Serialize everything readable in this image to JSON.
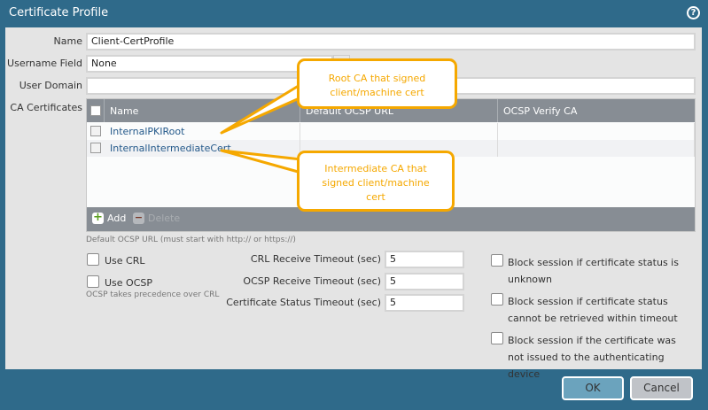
{
  "dialog": {
    "title": "Certificate Profile",
    "help_icon": "question-circle-icon"
  },
  "form": {
    "name_label": "Name",
    "name_value": "Client-CertProfile",
    "username_label": "Username Field",
    "username_value": "None",
    "domain_label": "User Domain",
    "domain_value": "",
    "ca_label": "CA Certificates"
  },
  "table": {
    "columns": [
      "Name",
      "Default OCSP URL",
      "OCSP Verify CA"
    ],
    "rows": [
      {
        "name": "InternalPKIRoot",
        "ocsp_url": "",
        "verify_ca": ""
      },
      {
        "name": "InternalIntermediateCert",
        "ocsp_url": "",
        "verify_ca": ""
      }
    ],
    "add_label": "Add",
    "delete_label": "Delete"
  },
  "ocsp_note": "Default OCSP URL (must start with http:// or https://)",
  "options": {
    "use_crl": {
      "label": "Use CRL",
      "checked": false
    },
    "use_ocsp": {
      "label": "Use OCSP",
      "checked": false
    },
    "ocsp_note": "OCSP takes precedence over CRL"
  },
  "timeouts": [
    {
      "label": "CRL Receive Timeout (sec)",
      "value": "5"
    },
    {
      "label": "OCSP Receive Timeout (sec)",
      "value": "5"
    },
    {
      "label": "Certificate Status Timeout (sec)",
      "value": "5"
    }
  ],
  "block": [
    {
      "label": "Block session if certificate status is unknown",
      "checked": false
    },
    {
      "label": "Block session if certificate status cannot be retrieved within timeout",
      "checked": false
    },
    {
      "label": "Block session if the certificate was not issued to the authenticating device",
      "checked": false
    }
  ],
  "buttons": {
    "ok": "OK",
    "cancel": "Cancel"
  },
  "callouts": {
    "root": "Root CA that signed client/machine cert",
    "intermediate": "Intermediate CA that signed client/machine cert"
  },
  "colors": {
    "frame": "#2f6a8a",
    "panel": "#e4e4e4",
    "table_header": "#878d94",
    "callout": "#f5a800",
    "link": "#24598a"
  }
}
